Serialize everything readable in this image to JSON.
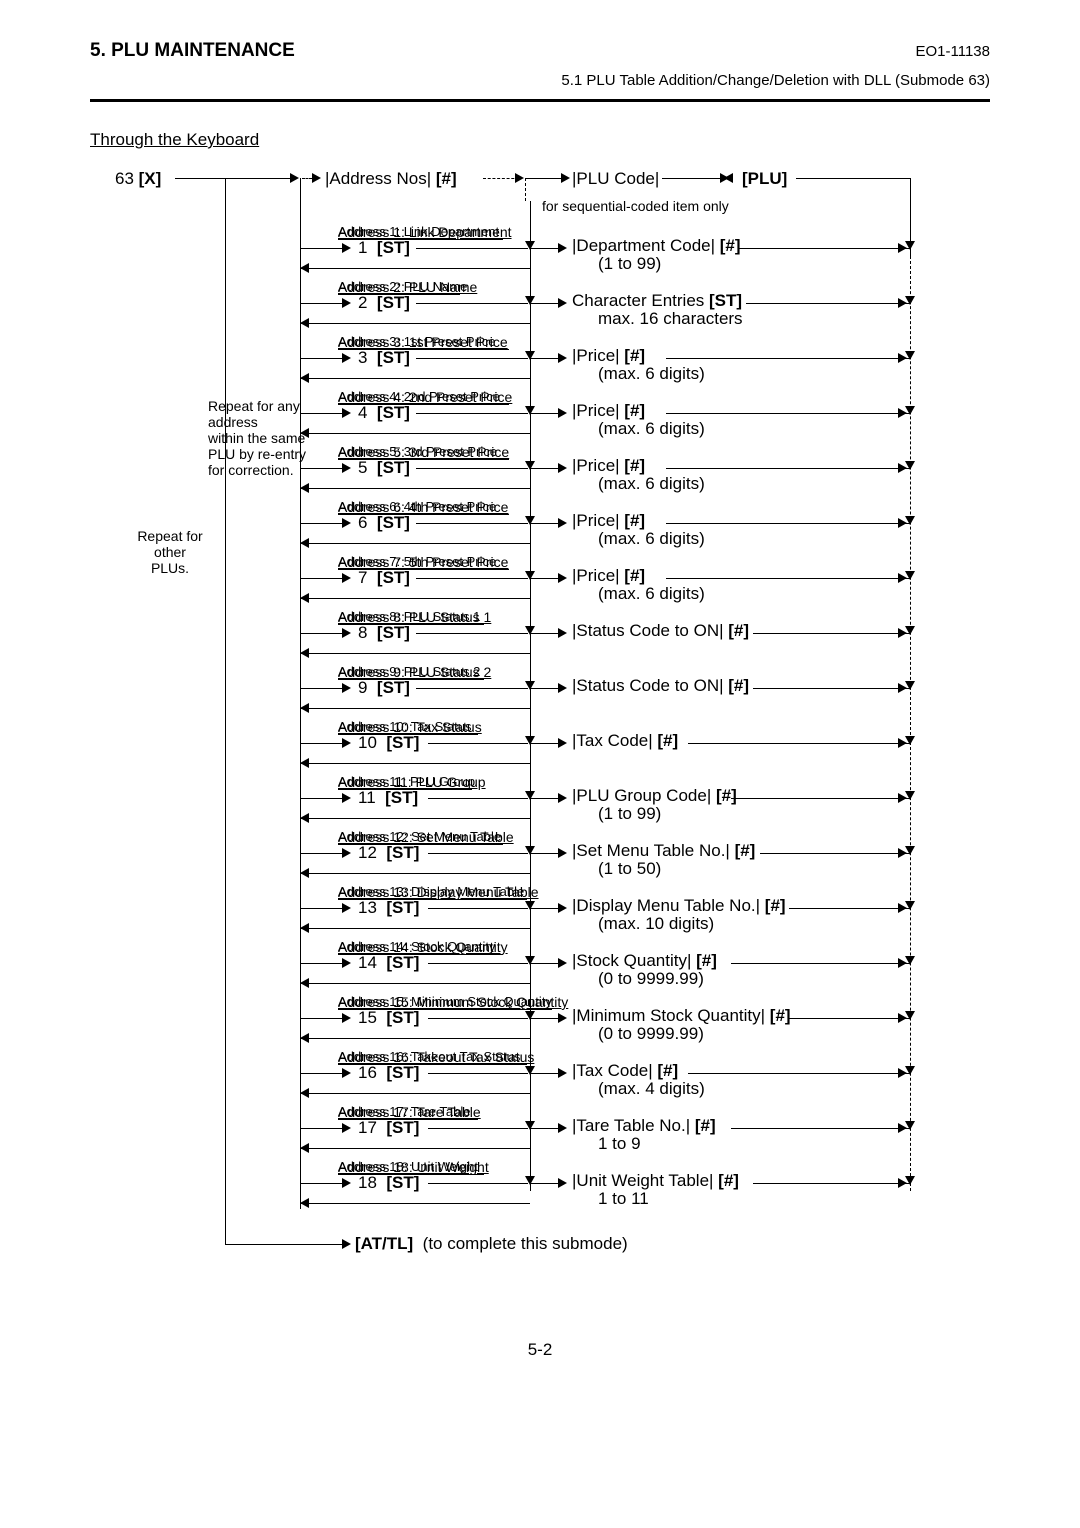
{
  "header": {
    "section": "5.  PLU MAINTENANCE",
    "docId": "EO1-11138",
    "subtitle": "5.1  PLU Table Addition/Change/Deletion with DLL (Submode 63)"
  },
  "keyboardTitle": "Through the Keyboard",
  "start": {
    "entry": "63",
    "entryKey": "[X]",
    "addressNos": "|Address Nos|",
    "hash": "[#]",
    "pluCode": "|PLU Code|",
    "pluKey": "[PLU]",
    "seqNote": "for sequential-coded item only"
  },
  "repeatNote1": "Repeat for any address within the same PLU by re-entry for correction.",
  "repeatNote2": "Repeat for\nother\nPLUs.",
  "completeKey": "[AT/TL]",
  "completeText": "(to complete this submode)",
  "pageNumber": "5-2",
  "addresses": [
    {
      "n": 1,
      "title": "Address 1:  Link Department",
      "rtop": "|Department Code|  [#]",
      "rbot": "(1 to 99)"
    },
    {
      "n": 2,
      "title": "Address 2:  PLU Name",
      "rtop": "Character Entries  [ST]",
      "rbot": "max. 16 characters"
    },
    {
      "n": 3,
      "title": "Address 3:  1st Preset Price",
      "rtop": "|Price|  [#]",
      "rbot": "(max. 6 digits)"
    },
    {
      "n": 4,
      "title": "Address 4:  2nd Preset Price",
      "rtop": "|Price|  [#]",
      "rbot": "(max. 6 digits)"
    },
    {
      "n": 5,
      "title": "Address 5:  3rd Preset Price",
      "rtop": "|Price|  [#]",
      "rbot": "(max. 6 digits)"
    },
    {
      "n": 6,
      "title": "Address 6:  4th Preset Price",
      "rtop": "|Price|  [#]",
      "rbot": "(max. 6 digits)"
    },
    {
      "n": 7,
      "title": "Address 7:  5th Preset Price",
      "rtop": "|Price|  [#]",
      "rbot": "(max. 6 digits)"
    },
    {
      "n": 8,
      "title": "Address 8:  PLU Status 1",
      "rtop": "|Status Code to ON|  [#]",
      "rbot": ""
    },
    {
      "n": 9,
      "title": "Address 9:  PLU Status 2",
      "rtop": "|Status Code to ON|  [#]",
      "rbot": ""
    },
    {
      "n": 10,
      "title": "Address 10:  Tax Status",
      "rtop": "|Tax Code|  [#]",
      "rbot": ""
    },
    {
      "n": 11,
      "title": "Address 11:  PLU Group",
      "rtop": "|PLU Group Code|  [#]",
      "rbot": "(1 to 99)"
    },
    {
      "n": 12,
      "title": "Address 12:  Set Menu Table",
      "rtop": "|Set Menu Table No.|  [#]",
      "rbot": "(1 to 50)"
    },
    {
      "n": 13,
      "title": "Address 13:  Display Menu Table",
      "rtop": "|Display Menu Table No.|  [#]",
      "rbot": "(max. 10 digits)"
    },
    {
      "n": 14,
      "title": "Address 14:  Stock Quantity",
      "rtop": "|Stock Quantity|  [#]",
      "rbot": "(0 to 9999.99)"
    },
    {
      "n": 15,
      "title": "Address 15:  Minimum Stock Quantity",
      "rtop": "|Minimum Stock Quantity|  [#]",
      "rbot": "(0 to 9999.99)"
    },
    {
      "n": 16,
      "title": "Address 16:  Takeout Tax Status",
      "rtop": "|Tax Code|  [#]",
      "rbot": "(max. 4 digits)"
    },
    {
      "n": 17,
      "title": "Address 17:  Tare Table",
      "rtop": "|Tare Table No.|  [#]",
      "rbot": "1 to 9"
    },
    {
      "n": 18,
      "title": "Address 18:  Unit Weight",
      "rtop": "|Unit Weight Table|  [#]",
      "rbot": "1 to 11"
    }
  ]
}
